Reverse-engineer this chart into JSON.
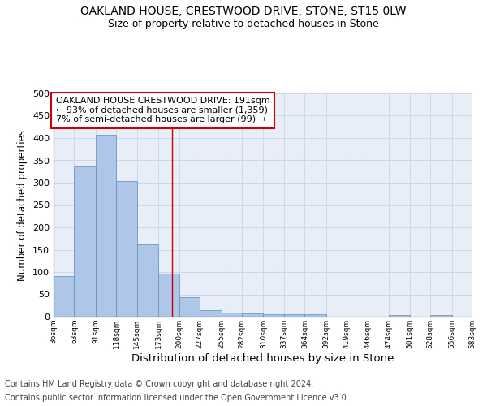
{
  "title1": "OAKLAND HOUSE, CRESTWOOD DRIVE, STONE, ST15 0LW",
  "title2": "Size of property relative to detached houses in Stone",
  "xlabel": "Distribution of detached houses by size in Stone",
  "ylabel": "Number of detached properties",
  "footnote1": "Contains HM Land Registry data © Crown copyright and database right 2024.",
  "footnote2": "Contains public sector information licensed under the Open Government Licence v3.0.",
  "annotation_line1": "OAKLAND HOUSE CRESTWOOD DRIVE: 191sqm",
  "annotation_line2": "← 93% of detached houses are smaller (1,359)",
  "annotation_line3": "7% of semi-detached houses are larger (99) →",
  "bar_left_edges": [
    36,
    63,
    91,
    118,
    145,
    173,
    200,
    227,
    255,
    282,
    310,
    337,
    364,
    392,
    419,
    446,
    474,
    501,
    528,
    556
  ],
  "bar_widths": [
    27,
    28,
    27,
    27,
    28,
    27,
    27,
    28,
    27,
    28,
    27,
    27,
    28,
    27,
    27,
    28,
    27,
    27,
    28,
    27
  ],
  "bar_heights": [
    91,
    336,
    407,
    304,
    161,
    96,
    44,
    15,
    10,
    7,
    5,
    5,
    5,
    0,
    0,
    0,
    4,
    0,
    4,
    0
  ],
  "bar_color": "#aec6e8",
  "bar_edge_color": "#5b8db8",
  "x_tick_labels": [
    "36sqm",
    "63sqm",
    "91sqm",
    "118sqm",
    "145sqm",
    "173sqm",
    "200sqm",
    "227sqm",
    "255sqm",
    "282sqm",
    "310sqm",
    "337sqm",
    "364sqm",
    "392sqm",
    "419sqm",
    "446sqm",
    "474sqm",
    "501sqm",
    "528sqm",
    "556sqm",
    "583sqm"
  ],
  "ylim": [
    0,
    500
  ],
  "yticks": [
    0,
    50,
    100,
    150,
    200,
    250,
    300,
    350,
    400,
    450,
    500
  ],
  "vline_x": 191,
  "vline_color": "#cc0000",
  "annotation_box_color": "#cc0000",
  "grid_color": "#d0d8e8",
  "bg_color": "#e8eef7",
  "title1_fontsize": 10,
  "title2_fontsize": 9,
  "xlabel_fontsize": 9.5,
  "ylabel_fontsize": 8.5,
  "annotation_fontsize": 8,
  "footnote_fontsize": 7
}
